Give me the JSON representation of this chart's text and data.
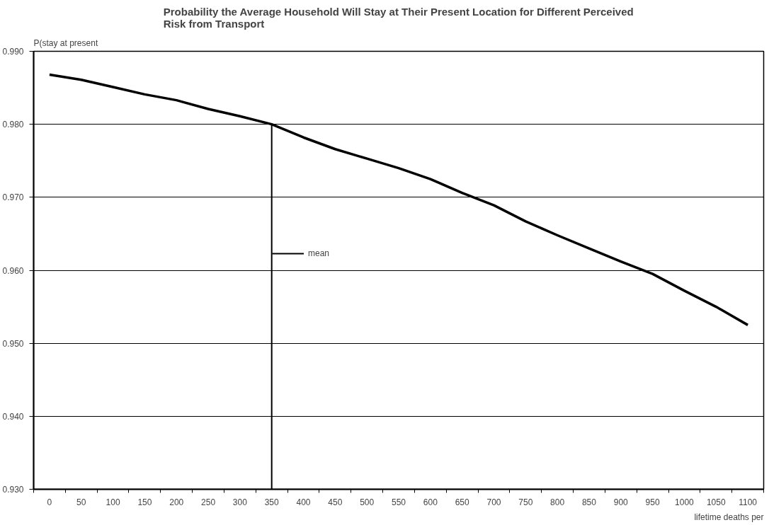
{
  "chart_data": {
    "type": "line",
    "title": "Probability the Average Household Will Stay at Their Present Location for Different Perceived Risk from Transport",
    "ylabel": "P(stay at present",
    "xlabel": "lifetime deaths per",
    "categories": [
      "0",
      "50",
      "100",
      "150",
      "200",
      "250",
      "300",
      "350",
      "400",
      "450",
      "500",
      "550",
      "600",
      "650",
      "700",
      "750",
      "800",
      "850",
      "900",
      "950",
      "1000",
      "1050",
      "1100"
    ],
    "series": [
      {
        "color": "#000000",
        "values": [
          0.9868,
          0.9861,
          0.9851,
          0.9841,
          0.9833,
          0.9821,
          0.9811,
          0.98,
          0.9782,
          0.9766,
          0.9753,
          0.974,
          0.9725,
          0.9706,
          0.9689,
          0.9667,
          0.9648,
          0.963,
          0.9612,
          0.9595,
          0.9572,
          0.955,
          0.9525
        ]
      }
    ],
    "ylim": [
      0.93,
      0.99
    ],
    "yticks": [
      {
        "value": 0.93,
        "label": "0.930"
      },
      {
        "value": 0.94,
        "label": "0.940"
      },
      {
        "value": 0.95,
        "label": "0.950"
      },
      {
        "value": 0.96,
        "label": "0.960"
      },
      {
        "value": 0.97,
        "label": "0.970"
      },
      {
        "value": 0.98,
        "label": "0.980"
      },
      {
        "value": 0.99,
        "label": "0.990"
      }
    ],
    "ref_lines": [
      {
        "axis": "x",
        "value": "350",
        "label": "mean",
        "color": "#000000"
      }
    ],
    "grid": "y",
    "legend": "left",
    "marker": "none",
    "line_style": "solid"
  }
}
